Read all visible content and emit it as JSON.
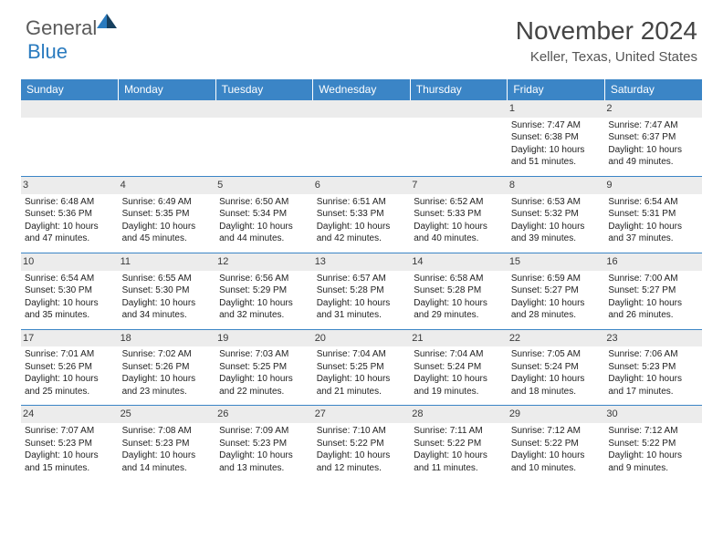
{
  "logo": {
    "general": "General",
    "blue": "Blue"
  },
  "title": "November 2024",
  "location": "Keller, Texas, United States",
  "colors": {
    "header_bg": "#3b85c6",
    "header_text": "#ffffff",
    "rule": "#3b85c6",
    "daynum_bg": "#ececec",
    "text": "#333333",
    "logo_blue": "#2a7bbf",
    "logo_gray": "#5a5a5a"
  },
  "weekdays": [
    "Sunday",
    "Monday",
    "Tuesday",
    "Wednesday",
    "Thursday",
    "Friday",
    "Saturday"
  ],
  "weeks": [
    [
      null,
      null,
      null,
      null,
      null,
      {
        "n": "1",
        "sunrise": "7:47 AM",
        "sunset": "6:38 PM",
        "daylight": "10 hours and 51 minutes."
      },
      {
        "n": "2",
        "sunrise": "7:47 AM",
        "sunset": "6:37 PM",
        "daylight": "10 hours and 49 minutes."
      }
    ],
    [
      {
        "n": "3",
        "sunrise": "6:48 AM",
        "sunset": "5:36 PM",
        "daylight": "10 hours and 47 minutes."
      },
      {
        "n": "4",
        "sunrise": "6:49 AM",
        "sunset": "5:35 PM",
        "daylight": "10 hours and 45 minutes."
      },
      {
        "n": "5",
        "sunrise": "6:50 AM",
        "sunset": "5:34 PM",
        "daylight": "10 hours and 44 minutes."
      },
      {
        "n": "6",
        "sunrise": "6:51 AM",
        "sunset": "5:33 PM",
        "daylight": "10 hours and 42 minutes."
      },
      {
        "n": "7",
        "sunrise": "6:52 AM",
        "sunset": "5:33 PM",
        "daylight": "10 hours and 40 minutes."
      },
      {
        "n": "8",
        "sunrise": "6:53 AM",
        "sunset": "5:32 PM",
        "daylight": "10 hours and 39 minutes."
      },
      {
        "n": "9",
        "sunrise": "6:54 AM",
        "sunset": "5:31 PM",
        "daylight": "10 hours and 37 minutes."
      }
    ],
    [
      {
        "n": "10",
        "sunrise": "6:54 AM",
        "sunset": "5:30 PM",
        "daylight": "10 hours and 35 minutes."
      },
      {
        "n": "11",
        "sunrise": "6:55 AM",
        "sunset": "5:30 PM",
        "daylight": "10 hours and 34 minutes."
      },
      {
        "n": "12",
        "sunrise": "6:56 AM",
        "sunset": "5:29 PM",
        "daylight": "10 hours and 32 minutes."
      },
      {
        "n": "13",
        "sunrise": "6:57 AM",
        "sunset": "5:28 PM",
        "daylight": "10 hours and 31 minutes."
      },
      {
        "n": "14",
        "sunrise": "6:58 AM",
        "sunset": "5:28 PM",
        "daylight": "10 hours and 29 minutes."
      },
      {
        "n": "15",
        "sunrise": "6:59 AM",
        "sunset": "5:27 PM",
        "daylight": "10 hours and 28 minutes."
      },
      {
        "n": "16",
        "sunrise": "7:00 AM",
        "sunset": "5:27 PM",
        "daylight": "10 hours and 26 minutes."
      }
    ],
    [
      {
        "n": "17",
        "sunrise": "7:01 AM",
        "sunset": "5:26 PM",
        "daylight": "10 hours and 25 minutes."
      },
      {
        "n": "18",
        "sunrise": "7:02 AM",
        "sunset": "5:26 PM",
        "daylight": "10 hours and 23 minutes."
      },
      {
        "n": "19",
        "sunrise": "7:03 AM",
        "sunset": "5:25 PM",
        "daylight": "10 hours and 22 minutes."
      },
      {
        "n": "20",
        "sunrise": "7:04 AM",
        "sunset": "5:25 PM",
        "daylight": "10 hours and 21 minutes."
      },
      {
        "n": "21",
        "sunrise": "7:04 AM",
        "sunset": "5:24 PM",
        "daylight": "10 hours and 19 minutes."
      },
      {
        "n": "22",
        "sunrise": "7:05 AM",
        "sunset": "5:24 PM",
        "daylight": "10 hours and 18 minutes."
      },
      {
        "n": "23",
        "sunrise": "7:06 AM",
        "sunset": "5:23 PM",
        "daylight": "10 hours and 17 minutes."
      }
    ],
    [
      {
        "n": "24",
        "sunrise": "7:07 AM",
        "sunset": "5:23 PM",
        "daylight": "10 hours and 15 minutes."
      },
      {
        "n": "25",
        "sunrise": "7:08 AM",
        "sunset": "5:23 PM",
        "daylight": "10 hours and 14 minutes."
      },
      {
        "n": "26",
        "sunrise": "7:09 AM",
        "sunset": "5:23 PM",
        "daylight": "10 hours and 13 minutes."
      },
      {
        "n": "27",
        "sunrise": "7:10 AM",
        "sunset": "5:22 PM",
        "daylight": "10 hours and 12 minutes."
      },
      {
        "n": "28",
        "sunrise": "7:11 AM",
        "sunset": "5:22 PM",
        "daylight": "10 hours and 11 minutes."
      },
      {
        "n": "29",
        "sunrise": "7:12 AM",
        "sunset": "5:22 PM",
        "daylight": "10 hours and 10 minutes."
      },
      {
        "n": "30",
        "sunrise": "7:12 AM",
        "sunset": "5:22 PM",
        "daylight": "10 hours and 9 minutes."
      }
    ]
  ]
}
